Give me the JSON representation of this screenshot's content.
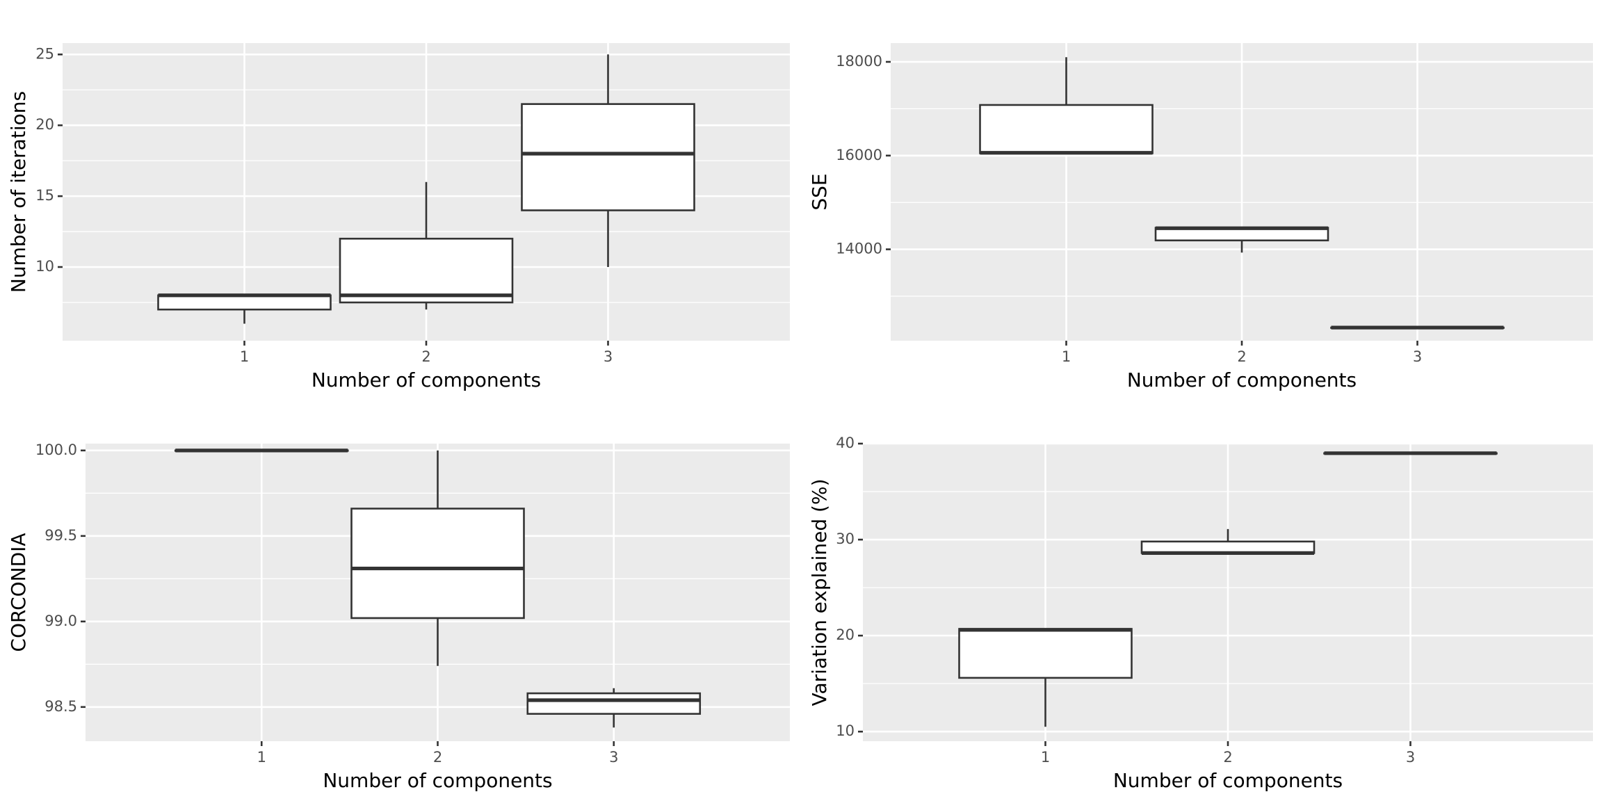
{
  "chart_data": [
    {
      "type": "boxplot",
      "xlabel": "Number of components",
      "ylabel": "Number of iterations",
      "categories": [
        "1",
        "2",
        "3"
      ],
      "ylim": [
        4.8,
        25.8
      ],
      "y_ticks": [
        10,
        15,
        20,
        25
      ],
      "y_tick_labels": [
        "10",
        "15",
        "20",
        "25"
      ],
      "boxes": [
        {
          "category": "1",
          "min": 6,
          "q1": 7,
          "median": 8,
          "q3": 8,
          "max": 8
        },
        {
          "category": "2",
          "min": 7,
          "q1": 7.5,
          "median": 8,
          "q3": 12,
          "max": 16
        },
        {
          "category": "3",
          "min": 10,
          "q1": 14,
          "median": 18,
          "q3": 21.5,
          "max": 25
        }
      ]
    },
    {
      "type": "boxplot",
      "xlabel": "Number of components",
      "ylabel": "SSE",
      "categories": [
        "1",
        "2",
        "3"
      ],
      "ylim": [
        12050,
        18400
      ],
      "y_ticks": [
        14000,
        16000,
        18000
      ],
      "y_tick_labels": [
        "14000",
        "16000",
        "18000"
      ],
      "boxes": [
        {
          "category": "1",
          "min": 16050,
          "q1": 16050,
          "median": 16060,
          "q3": 17080,
          "max": 18100
        },
        {
          "category": "2",
          "min": 13930,
          "q1": 14190,
          "median": 14450,
          "q3": 14460,
          "max": 14470
        },
        {
          "category": "3",
          "min": 12330,
          "q1": 12330,
          "median": 12330,
          "q3": 12330,
          "max": 12330
        }
      ]
    },
    {
      "type": "boxplot",
      "xlabel": "Number of components",
      "ylabel": "CORCONDIA",
      "categories": [
        "1",
        "2",
        "3"
      ],
      "ylim": [
        98.3,
        100.04
      ],
      "y_ticks": [
        98.5,
        99.0,
        99.5,
        100.0
      ],
      "y_tick_labels": [
        "98.5",
        "99.0",
        "99.5",
        "100.0"
      ],
      "boxes": [
        {
          "category": "1",
          "min": 100.0,
          "q1": 100.0,
          "median": 100.0,
          "q3": 100.0,
          "max": 100.0
        },
        {
          "category": "2",
          "min": 98.74,
          "q1": 99.02,
          "median": 99.31,
          "q3": 99.66,
          "max": 100.0
        },
        {
          "category": "3",
          "min": 98.38,
          "q1": 98.46,
          "median": 98.54,
          "q3": 98.58,
          "max": 98.61
        }
      ]
    },
    {
      "type": "boxplot",
      "xlabel": "Number of components",
      "ylabel": "Variation explained (%)",
      "categories": [
        "1",
        "2",
        "3"
      ],
      "ylim": [
        9.0,
        40.0
      ],
      "y_ticks": [
        10,
        20,
        30,
        40
      ],
      "y_tick_labels": [
        "10",
        "20",
        "30",
        "40"
      ],
      "boxes": [
        {
          "category": "1",
          "min": 10.5,
          "q1": 15.6,
          "median": 20.6,
          "q3": 20.7,
          "max": 20.7
        },
        {
          "category": "2",
          "min": 28.6,
          "q1": 28.6,
          "median": 28.6,
          "q3": 29.8,
          "max": 31.1
        },
        {
          "category": "3",
          "min": 39.0,
          "q1": 39.0,
          "median": 39.0,
          "q3": 39.0,
          "max": 39.0
        }
      ]
    }
  ]
}
